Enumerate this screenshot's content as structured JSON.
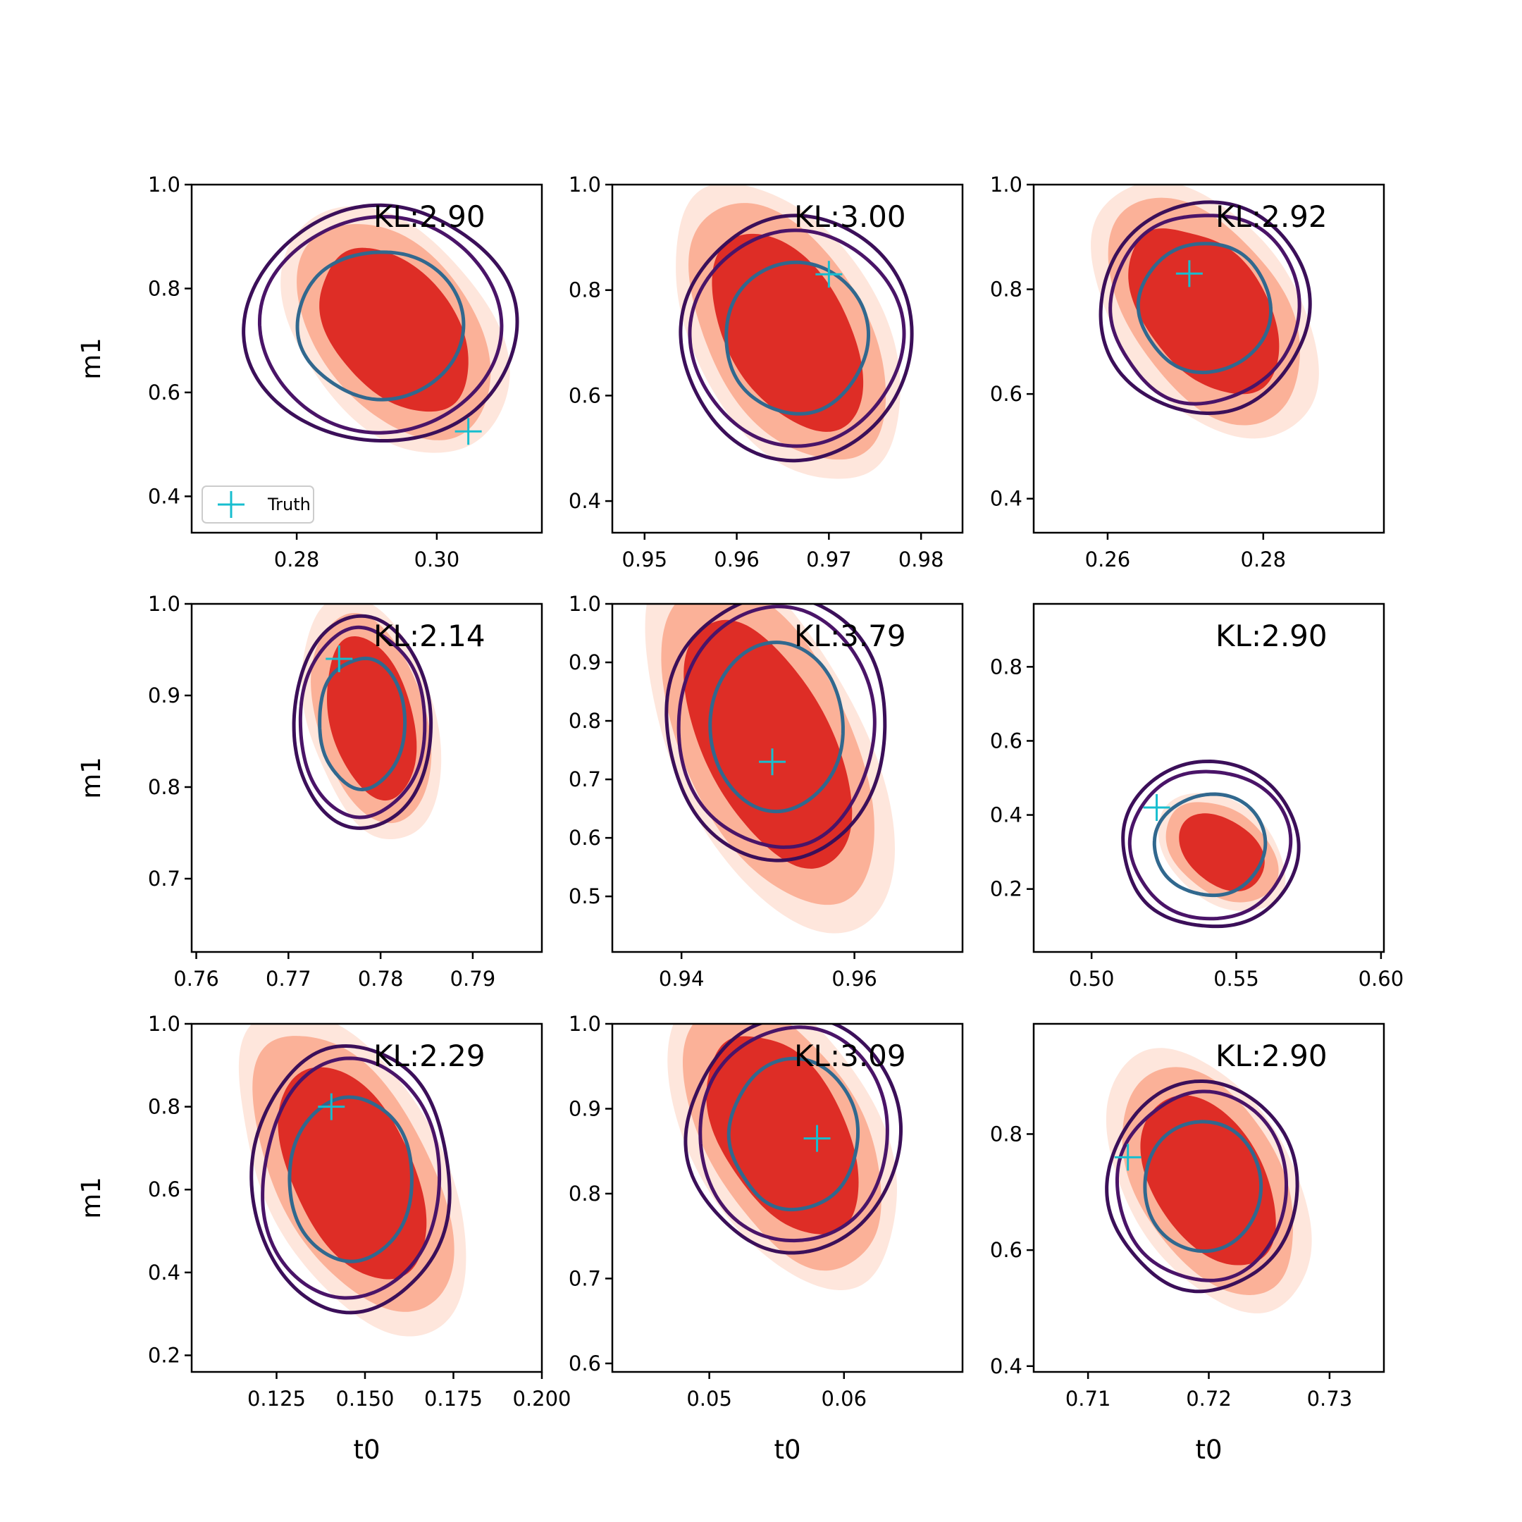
{
  "figure": {
    "colors": {
      "fill_outer": "#fee6dc",
      "fill_mid": "#fbb198",
      "fill_inner": "#de2d26",
      "contour_outer": "#3b0f59",
      "contour_mid": "#4a1468",
      "contour_inner": "#31688e",
      "truth_marker": "#17becf"
    },
    "legend": {
      "label": "Truth",
      "placement": "lower-left of first panel"
    }
  },
  "chart_data": [
    {
      "type": "contour",
      "ylabel": "m1",
      "xlabel": "",
      "xlim": [
        0.265,
        0.315
      ],
      "ylim": [
        0.33,
        1.0
      ],
      "xticks": [
        0.28,
        0.3
      ],
      "xticklabels": [
        "0.28",
        "0.30"
      ],
      "yticks": [
        0.4,
        0.6,
        0.8,
        1.0
      ],
      "yticklabels": [
        "0.4",
        "0.6",
        "0.8",
        "1.0"
      ],
      "annotation": "KL:2.90",
      "truth": {
        "x": 0.3045,
        "y": 0.525
      },
      "kde_center": {
        "x": 0.294,
        "y": 0.72
      },
      "kde_spread": {
        "x": 0.016,
        "y": 0.22
      },
      "corr": -0.5,
      "contour_center": {
        "x": 0.292,
        "y": 0.73
      },
      "contour_spread": {
        "x": 0.019,
        "y": 0.23
      },
      "legend": true
    },
    {
      "type": "contour",
      "ylabel": "",
      "xlabel": "",
      "xlim": [
        0.9465,
        0.9845
      ],
      "ylim": [
        0.34,
        1.0
      ],
      "xticks": [
        0.95,
        0.96,
        0.97,
        0.98
      ],
      "xticklabels": [
        "0.95",
        "0.96",
        "0.97",
        "0.98"
      ],
      "yticks": [
        0.4,
        0.6,
        0.8,
        1.0
      ],
      "yticklabels": [
        "0.4",
        "0.6",
        "0.8",
        "1.0"
      ],
      "annotation": "KL:3.00",
      "truth": {
        "x": 0.97,
        "y": 0.83
      },
      "kde_center": {
        "x": 0.9655,
        "y": 0.72
      },
      "kde_spread": {
        "x": 0.0125,
        "y": 0.25
      },
      "corr": -0.6,
      "contour_center": {
        "x": 0.9665,
        "y": 0.71
      },
      "contour_spread": {
        "x": 0.0125,
        "y": 0.23
      }
    },
    {
      "type": "contour",
      "ylabel": "",
      "xlabel": "",
      "xlim": [
        0.2505,
        0.2955
      ],
      "ylim": [
        0.335,
        1.0
      ],
      "xticks": [
        0.26,
        0.28
      ],
      "xticklabels": [
        "0.26",
        "0.28"
      ],
      "yticks": [
        0.4,
        0.6,
        0.8,
        1.0
      ],
      "yticklabels": [
        "0.4",
        "0.6",
        "0.8",
        "1.0"
      ],
      "annotation": "KL:2.92",
      "truth": {
        "x": 0.2705,
        "y": 0.83
      },
      "kde_center": {
        "x": 0.2725,
        "y": 0.76
      },
      "kde_spread": {
        "x": 0.0145,
        "y": 0.22
      },
      "corr": -0.55,
      "contour_center": {
        "x": 0.2725,
        "y": 0.765
      },
      "contour_spread": {
        "x": 0.0135,
        "y": 0.2
      }
    },
    {
      "type": "contour",
      "ylabel": "m1",
      "xlabel": "",
      "xlim": [
        0.7595,
        0.7975
      ],
      "ylim": [
        0.62,
        1.0
      ],
      "xticks": [
        0.76,
        0.77,
        0.78,
        0.79
      ],
      "xticklabels": [
        "0.76",
        "0.77",
        "0.78",
        "0.79"
      ],
      "yticks": [
        0.7,
        0.8,
        0.9,
        1.0
      ],
      "yticklabels": [
        "0.7",
        "0.8",
        "0.9",
        "1.0"
      ],
      "annotation": "KL:2.14",
      "truth": {
        "x": 0.7755,
        "y": 0.94
      },
      "kde_center": {
        "x": 0.779,
        "y": 0.875
      },
      "kde_spread": {
        "x": 0.0075,
        "y": 0.125
      },
      "corr": -0.4,
      "contour_center": {
        "x": 0.778,
        "y": 0.87
      },
      "contour_spread": {
        "x": 0.0075,
        "y": 0.115
      }
    },
    {
      "type": "contour",
      "ylabel": "",
      "xlabel": "",
      "xlim": [
        0.932,
        0.9725
      ],
      "ylim": [
        0.405,
        1.0
      ],
      "xticks": [
        0.94,
        0.96
      ],
      "xticklabels": [
        "0.94",
        "0.96"
      ],
      "yticks": [
        0.5,
        0.6,
        0.7,
        0.8,
        0.9,
        1.0
      ],
      "yticklabels": [
        "0.5",
        "0.6",
        "0.7",
        "0.8",
        "0.9",
        "1.0"
      ],
      "annotation": "KL:3.79",
      "truth": {
        "x": 0.9505,
        "y": 0.73
      },
      "kde_center": {
        "x": 0.95,
        "y": 0.76
      },
      "kde_spread": {
        "x": 0.0145,
        "y": 0.27
      },
      "corr": -0.7,
      "contour_center": {
        "x": 0.951,
        "y": 0.79
      },
      "contour_spread": {
        "x": 0.0125,
        "y": 0.23
      }
    },
    {
      "type": "contour",
      "ylabel": "",
      "xlabel": "",
      "xlim": [
        0.48,
        0.601
      ],
      "ylim": [
        0.03,
        0.97
      ],
      "xticks": [
        0.5,
        0.55,
        0.6
      ],
      "xticklabels": [
        "0.50",
        "0.55",
        "0.60"
      ],
      "yticks": [
        0.2,
        0.4,
        0.6,
        0.8
      ],
      "yticklabels": [
        "0.2",
        "0.4",
        "0.6",
        "0.8"
      ],
      "annotation": "KL:2.90",
      "truth": {
        "x": 0.5225,
        "y": 0.42
      },
      "kde_center": {
        "x": 0.545,
        "y": 0.3
      },
      "kde_spread": {
        "x": 0.022,
        "y": 0.15
      },
      "corr": -0.4,
      "contour_center": {
        "x": 0.541,
        "y": 0.32
      },
      "contour_spread": {
        "x": 0.031,
        "y": 0.22
      }
    },
    {
      "type": "contour",
      "ylabel": "m1",
      "xlabel": "t0",
      "xlim": [
        0.101,
        0.2
      ],
      "ylim": [
        0.16,
        1.0
      ],
      "xticks": [
        0.125,
        0.15,
        0.175,
        0.2
      ],
      "xticklabels": [
        "0.125",
        "0.150",
        "0.175",
        "0.200"
      ],
      "yticks": [
        0.2,
        0.4,
        0.6,
        0.8,
        1.0
      ],
      "yticklabels": [
        "0.2",
        "0.4",
        "0.6",
        "0.8",
        "1.0"
      ],
      "annotation": "KL:2.29",
      "truth": {
        "x": 0.1405,
        "y": 0.8
      },
      "kde_center": {
        "x": 0.1465,
        "y": 0.64
      },
      "kde_spread": {
        "x": 0.032,
        "y": 0.34
      },
      "corr": -0.65,
      "contour_center": {
        "x": 0.146,
        "y": 0.625
      },
      "contour_spread": {
        "x": 0.028,
        "y": 0.32
      }
    },
    {
      "type": "contour",
      "ylabel": "",
      "xlabel": "t0",
      "xlim": [
        0.0428,
        0.0688
      ],
      "ylim": [
        0.59,
        1.0
      ],
      "xticks": [
        0.05,
        0.06
      ],
      "xticklabels": [
        "0.05",
        "0.06"
      ],
      "yticks": [
        0.6,
        0.7,
        0.8,
        0.9,
        1.0
      ],
      "yticklabels": [
        "0.6",
        "0.7",
        "0.8",
        "0.9",
        "1.0"
      ],
      "annotation": "KL:3.09",
      "truth": {
        "x": 0.058,
        "y": 0.865
      },
      "kde_center": {
        "x": 0.0555,
        "y": 0.87
      },
      "kde_spread": {
        "x": 0.0085,
        "y": 0.16
      },
      "corr": -0.6,
      "contour_center": {
        "x": 0.0563,
        "y": 0.87
      },
      "contour_spread": {
        "x": 0.0078,
        "y": 0.14
      }
    },
    {
      "type": "contour",
      "ylabel": "",
      "xlabel": "t0",
      "xlim": [
        0.7055,
        0.7345
      ],
      "ylim": [
        0.39,
        0.99
      ],
      "xticks": [
        0.71,
        0.72,
        0.73
      ],
      "xticklabels": [
        "0.71",
        "0.72",
        "0.73"
      ],
      "yticks": [
        0.4,
        0.6,
        0.8
      ],
      "yticklabels": [
        "0.4",
        "0.6",
        "0.8"
      ],
      "annotation": "KL:2.90",
      "truth": {
        "x": 0.7133,
        "y": 0.76
      },
      "kde_center": {
        "x": 0.72,
        "y": 0.72
      },
      "kde_spread": {
        "x": 0.0085,
        "y": 0.2
      },
      "corr": -0.55,
      "contour_center": {
        "x": 0.7195,
        "y": 0.71
      },
      "contour_spread": {
        "x": 0.0078,
        "y": 0.18
      }
    }
  ]
}
